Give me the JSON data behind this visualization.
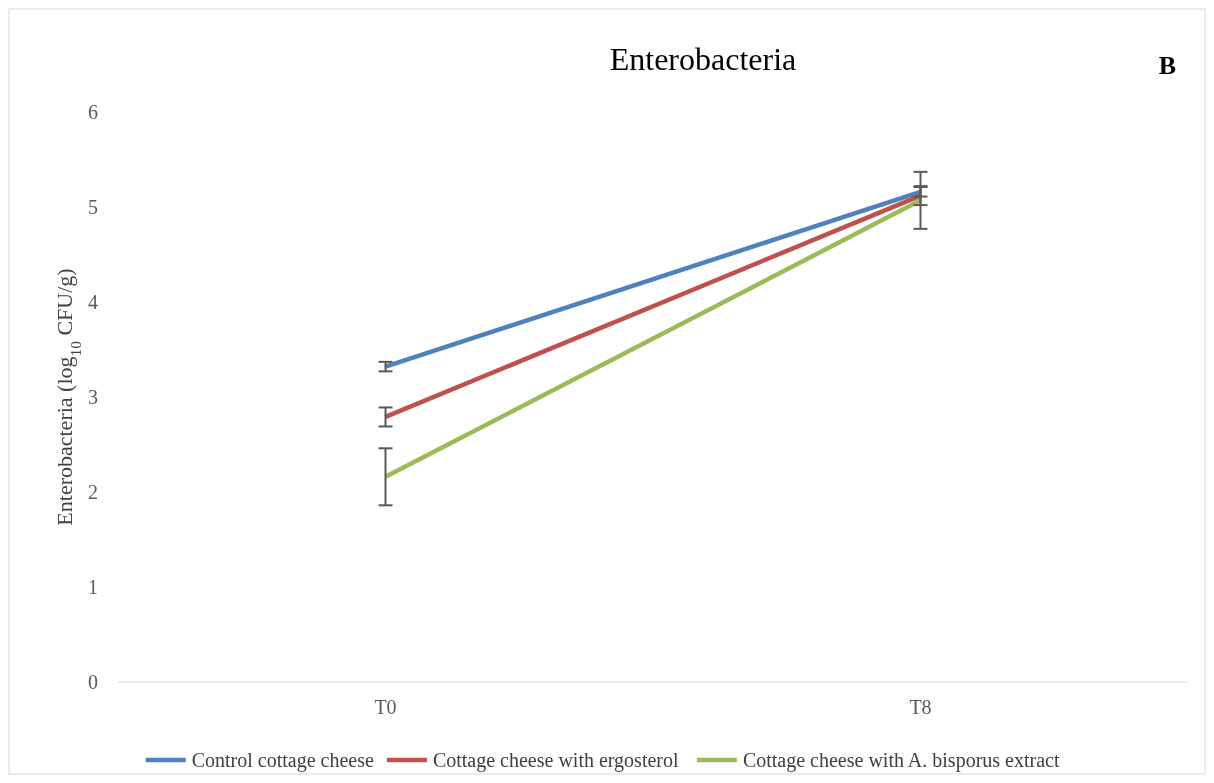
{
  "chart_data": {
    "type": "line",
    "title": "Enterobacteria",
    "ylabel": "Enterobacteria (log$_{10}$ CFU/g)",
    "annotations": [
      "B"
    ],
    "categories": [
      "T0",
      "T8"
    ],
    "series": [
      {
        "name": "Control cottage cheese",
        "color": "#4f81bd",
        "values": [
          3.32,
          5.16
        ],
        "errors": [
          0.05,
          0.05
        ]
      },
      {
        "name": "Cottage cheese with ergosterol",
        "color": "#c0504d",
        "values": [
          2.79,
          5.12
        ],
        "errors": [
          0.1,
          0.1
        ]
      },
      {
        "name": "Cottage cheese with A. bisporus extract",
        "color": "#9bbb59",
        "values": [
          2.16,
          5.07
        ],
        "errors": [
          0.3,
          0.3
        ]
      }
    ],
    "ylim": [
      0,
      6
    ],
    "yticks": [
      0,
      1,
      2,
      3,
      4,
      5,
      6
    ],
    "legend": "bottom",
    "marker": "none",
    "line_style": "solid"
  }
}
